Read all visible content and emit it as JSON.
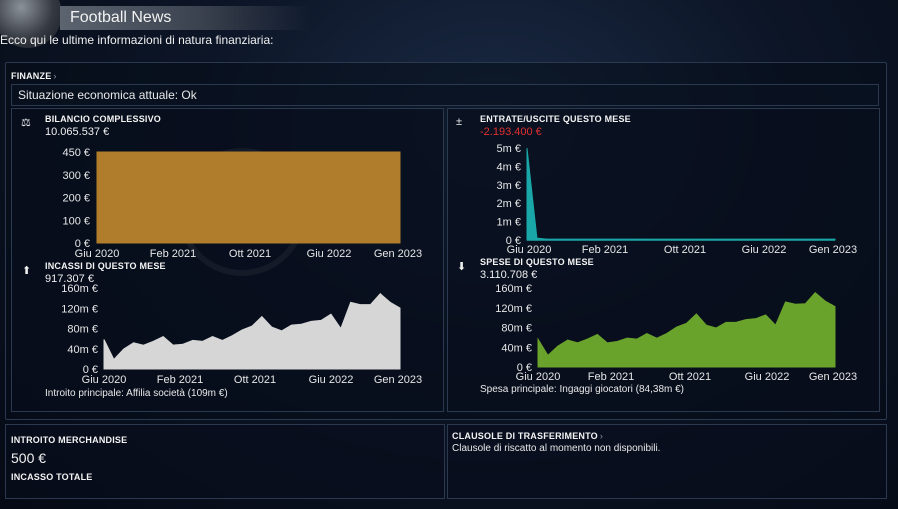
{
  "header": {
    "title": "Football News",
    "ball_icon": "football-icon"
  },
  "intro": "Ecco qui le ultime informazioni di natura finanziaria:",
  "finanze": {
    "label": "FINANZE",
    "status": "Situazione economica attuale: Ok"
  },
  "bilancio": {
    "label": "BILANCIO COMPLESSIVO",
    "value": "10.065.537 €",
    "icon": "balance-scale-icon"
  },
  "entrate_uscite": {
    "label": "ENTRATE/USCITE QUESTO MESE",
    "value": "-2.193.400 €",
    "icon": "plus-minus-icon"
  },
  "incassi": {
    "label": "INCASSI DI QUESTO MESE",
    "value": "917.307 €",
    "icon": "arrow-up-icon",
    "footnote": "Introito principale:  Affilia società (109m €)"
  },
  "spese": {
    "label": "SPESE DI QUESTO MESE",
    "value": "3.110.708 €",
    "icon": "arrow-down-icon",
    "footnote": "Spesa principale:  Ingaggi giocatori (84,38m €)"
  },
  "merchandise": {
    "label": "INTROITO MERCHANDISE",
    "value": "500 €",
    "sub_label": "INCASSO TOTALE"
  },
  "clausole": {
    "label": "CLAUSOLE DI TRASFERIMENTO",
    "text": "Clausole di riscatto al momento non disponibili."
  },
  "colors": {
    "bilancio": "#b07d2c",
    "entrate": "#1aa7a7",
    "incassi": "#d6d6d6",
    "spese": "#6aa32c",
    "negative": "#e23030"
  },
  "chart_data": [
    {
      "type": "area",
      "name": "bilancio",
      "x_ticks": [
        "Giu 2020",
        "Feb 2021",
        "Ott 2021",
        "Giu 2022",
        "Gen 2023"
      ],
      "y_ticks": [
        "0 €",
        "100 €",
        "200 €",
        "300 €",
        "450 €"
      ],
      "ylim": [
        0,
        450
      ],
      "values": [
        450,
        450,
        450,
        450,
        450,
        450,
        450,
        450,
        450,
        450
      ]
    },
    {
      "type": "area",
      "name": "entrate_uscite",
      "x_ticks": [
        "Giu 2020",
        "Feb 2021",
        "Ott 2021",
        "Giu 2022",
        "Gen 2023"
      ],
      "y_ticks": [
        "0 €",
        "1m €",
        "2m €",
        "3m €",
        "4m €",
        "5m €"
      ],
      "ylim": [
        0,
        5
      ],
      "values": [
        5,
        0.1,
        0.05,
        0.05,
        0.05,
        0.05,
        0.05,
        0.05,
        0.05,
        0.05,
        0.05,
        0.05,
        0.05,
        0.05,
        0.05,
        0.05,
        0.05,
        0.05,
        0.05,
        0.05,
        0.05,
        0.05,
        0.05,
        0.05,
        0.05,
        0.05,
        0.05,
        0.05,
        0.05,
        0.05,
        0.05,
        0.05
      ]
    },
    {
      "type": "area",
      "name": "incassi",
      "x_ticks": [
        "Giu 2020",
        "Feb 2021",
        "Ott 2021",
        "Giu 2022",
        "Gen 2023"
      ],
      "y_ticks": [
        "0 €",
        "40m €",
        "80m €",
        "120m €",
        "160m €"
      ],
      "ylim": [
        0,
        170
      ],
      "values": [
        62,
        20,
        42,
        55,
        50,
        58,
        68,
        50,
        52,
        60,
        58,
        68,
        60,
        70,
        82,
        90,
        110,
        88,
        80,
        92,
        94,
        100,
        102,
        115,
        85,
        140,
        135,
        135,
        158,
        140,
        128
      ]
    },
    {
      "type": "area",
      "name": "spese",
      "x_ticks": [
        "Giu 2020",
        "Feb 2021",
        "Ott 2021",
        "Giu 2022",
        "Gen 2023"
      ],
      "y_ticks": [
        "0 €",
        "40m €",
        "80m €",
        "120m €",
        "160m €"
      ],
      "ylim": [
        0,
        170
      ],
      "values": [
        60,
        25,
        45,
        58,
        52,
        60,
        70,
        52,
        55,
        62,
        60,
        72,
        62,
        72,
        86,
        94,
        114,
        90,
        84,
        96,
        96,
        102,
        104,
        112,
        90,
        140,
        135,
        136,
        160,
        142,
        130
      ]
    }
  ]
}
